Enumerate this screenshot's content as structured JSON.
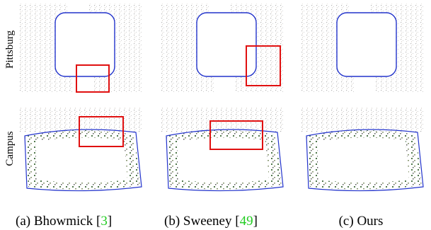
{
  "row_labels": [
    "Pittsburg",
    "Campus"
  ],
  "captions": [
    {
      "prefix": "(a) Bhowmick [",
      "ref": "3",
      "suffix": "]"
    },
    {
      "prefix": "(b) Sweeney [",
      "ref": "49",
      "suffix": "]"
    },
    {
      "text": "(c) Ours"
    }
  ]
}
